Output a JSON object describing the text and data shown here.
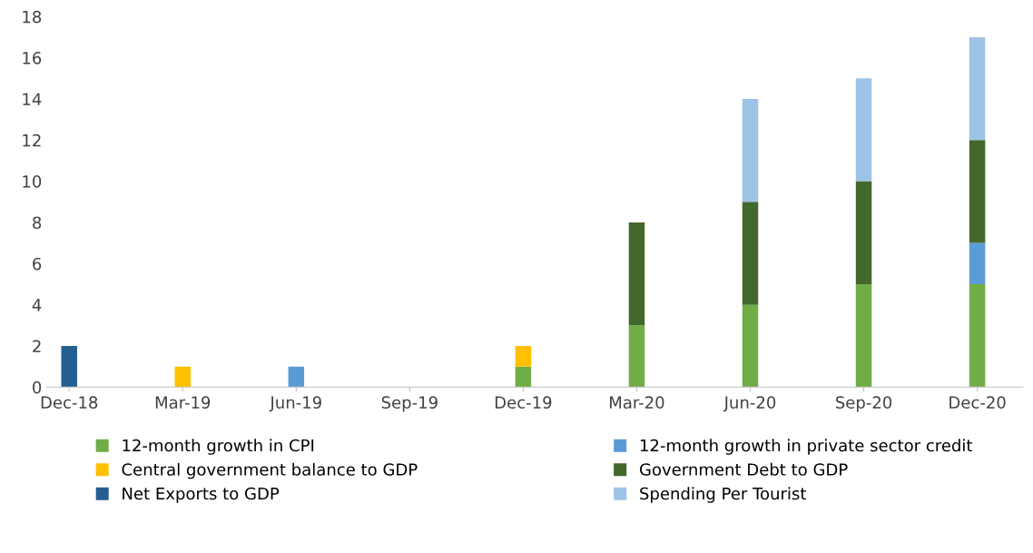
{
  "chart_data": {
    "type": "bar",
    "stacked": true,
    "categories": [
      "Dec-18",
      "Mar-19",
      "Jun-19",
      "Sep-19",
      "Dec-19",
      "Mar-20",
      "Jun-20",
      "Sep-20",
      "Dec-20"
    ],
    "series": [
      {
        "name": "12-month growth in CPI",
        "color": "#70ad47",
        "values": [
          null,
          null,
          null,
          null,
          1,
          3,
          4,
          5,
          5
        ]
      },
      {
        "name": "12-month growth in private sector credit",
        "color": "#5b9bd5",
        "values": [
          null,
          null,
          1,
          null,
          null,
          null,
          null,
          null,
          2
        ]
      },
      {
        "name": "Central government balance to GDP",
        "color": "#ffc000",
        "values": [
          null,
          1,
          null,
          null,
          1,
          null,
          null,
          null,
          null
        ]
      },
      {
        "name": "Government Debt to GDP",
        "color": "#43682b",
        "values": [
          null,
          null,
          null,
          null,
          null,
          5,
          5,
          5,
          5
        ]
      },
      {
        "name": "Net Exports to GDP",
        "color": "#255e91",
        "values": [
          2,
          null,
          null,
          null,
          null,
          null,
          null,
          null,
          null
        ]
      },
      {
        "name": "Spending Per Tourist",
        "color": "#9dc3e6",
        "values": [
          null,
          null,
          null,
          null,
          null,
          null,
          5,
          5,
          5
        ]
      }
    ],
    "ylim": [
      0,
      18
    ],
    "yticks": [
      0,
      2,
      4,
      6,
      8,
      10,
      12,
      14,
      16,
      18
    ],
    "legend": "bottom",
    "grid": false
  }
}
